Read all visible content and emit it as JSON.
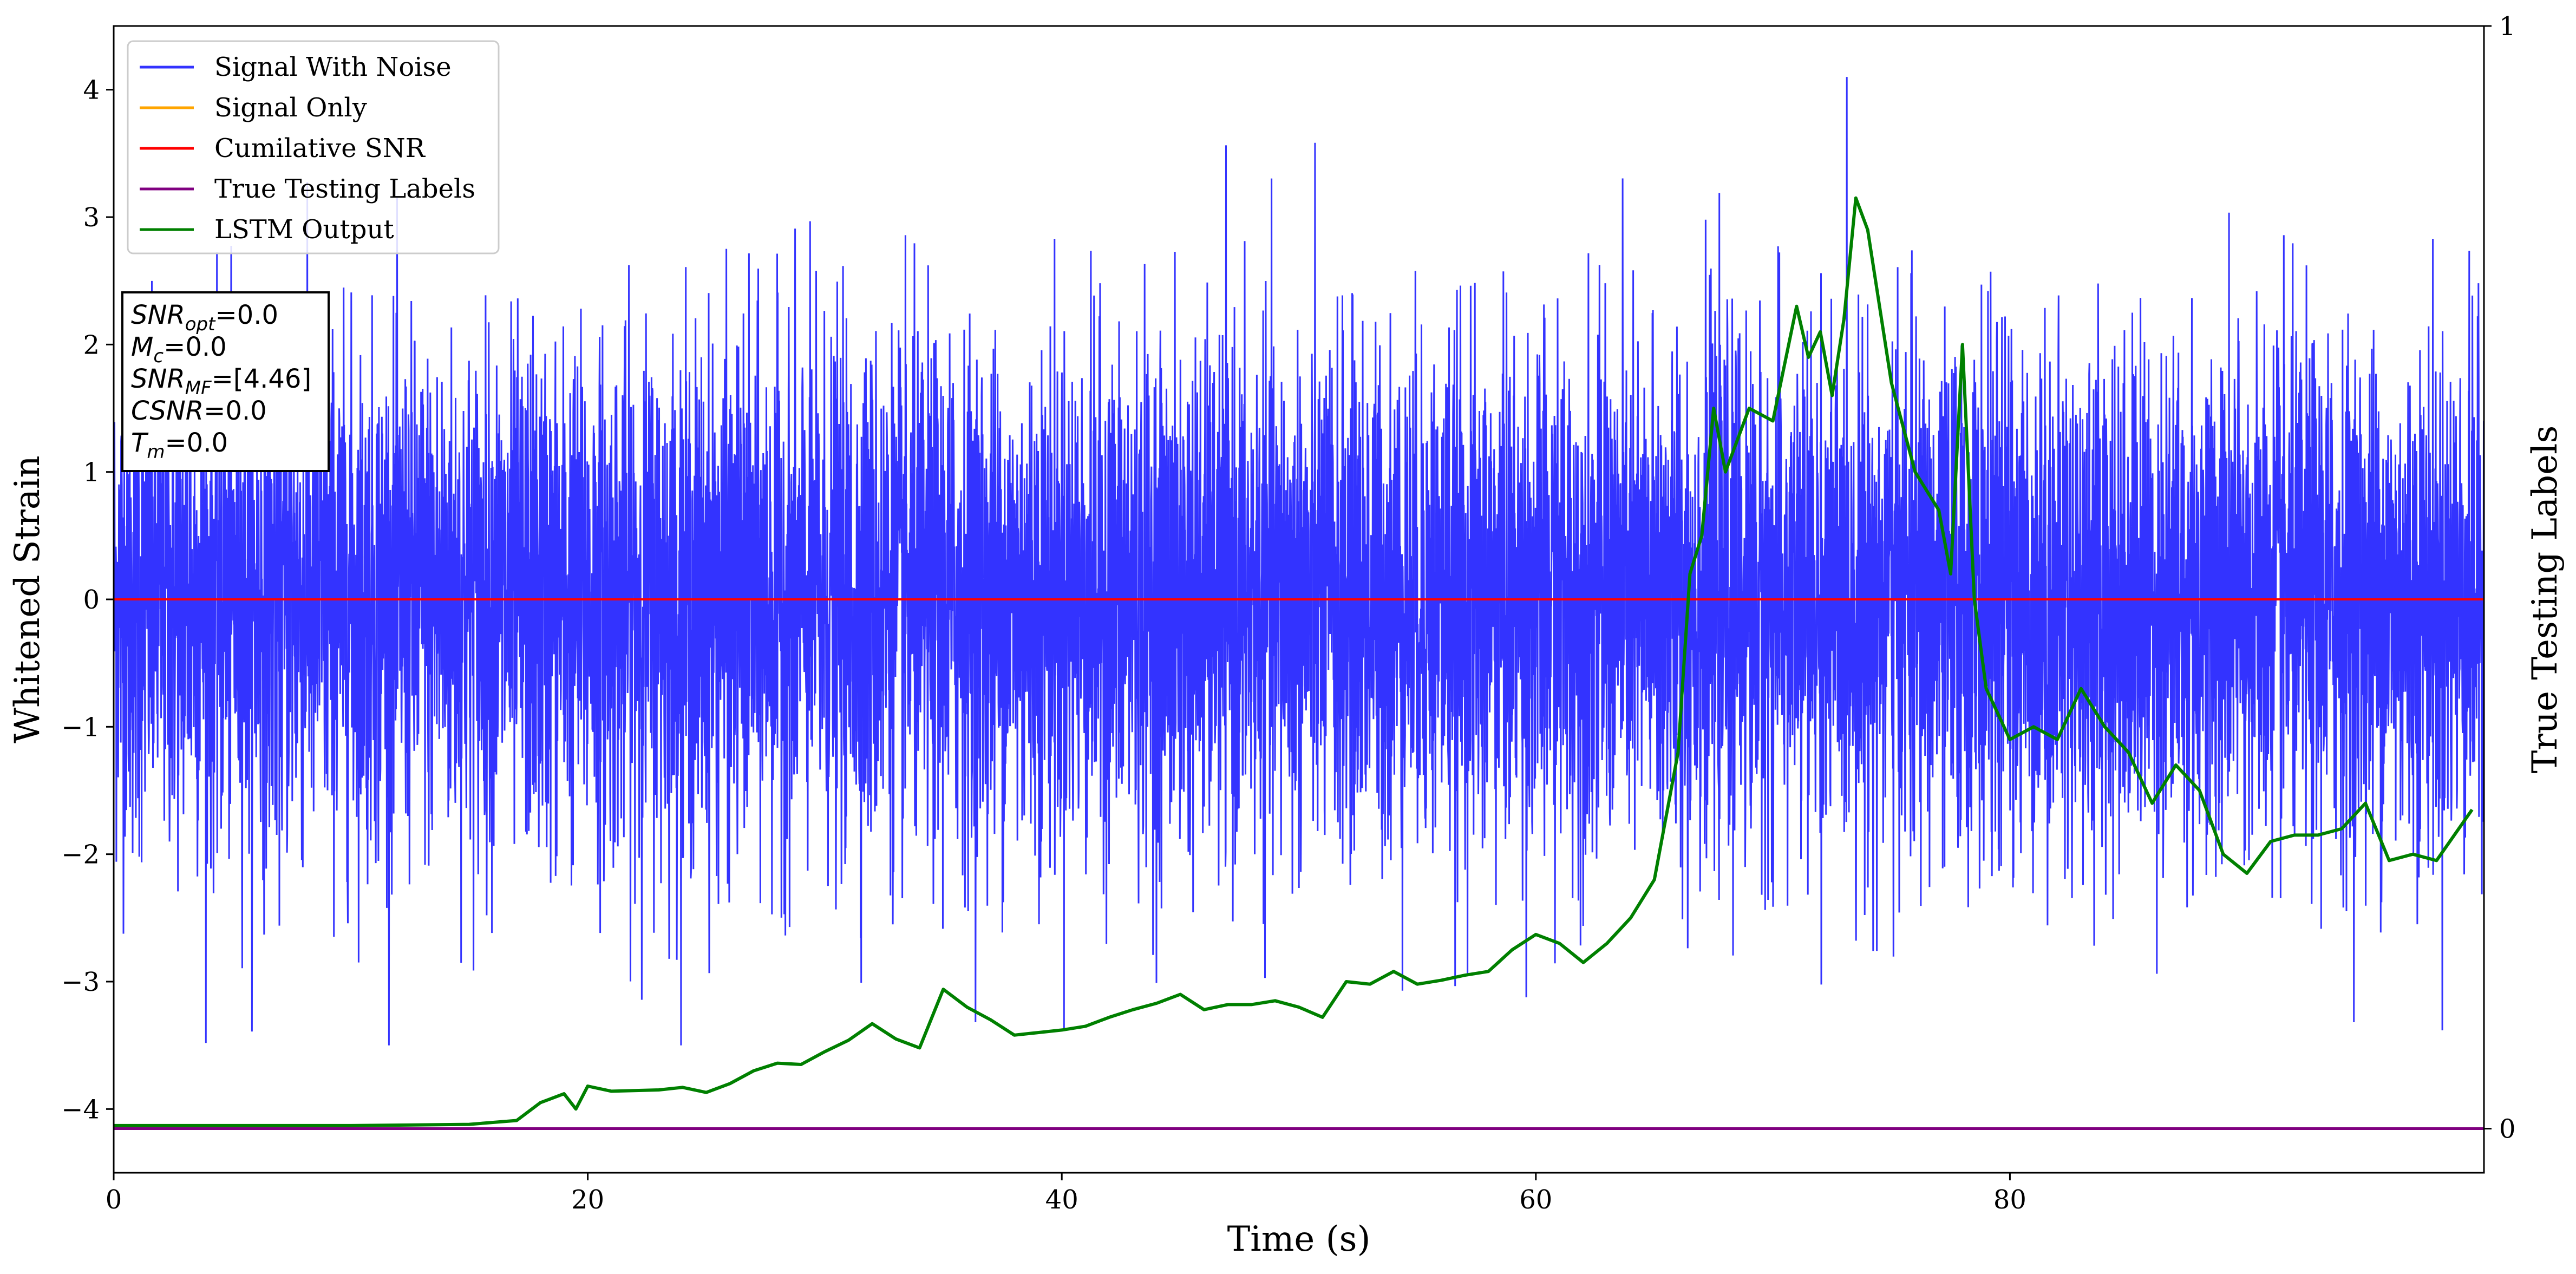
{
  "chart_data": {
    "type": "line",
    "xlabel": "Time (s)",
    "ylabel": "Whitened Strain",
    "y2label": "True Testing Labels",
    "xlim": [
      0,
      100
    ],
    "ylim": [
      -4.5,
      4.5
    ],
    "y2lim": [
      -0.04,
      1
    ],
    "xticks": [
      "0",
      "20",
      "40",
      "60",
      "80"
    ],
    "xtick_values": [
      0,
      20,
      40,
      60,
      80
    ],
    "yticks": [
      "4",
      "3",
      "2",
      "1",
      "0",
      "−1",
      "−2",
      "−3",
      "−4"
    ],
    "ytick_values": [
      4,
      3,
      2,
      1,
      0,
      -1,
      -2,
      -3,
      -4
    ],
    "y2ticks": [
      "1",
      "0"
    ],
    "y2tick_values": [
      1,
      0
    ],
    "legend_position": "top-left",
    "series": [
      {
        "name": "Signal With Noise",
        "color": "#3333ff",
        "kind": "noise",
        "description_values": {
          "mean": 0.0,
          "approx_min": -3.5,
          "approx_max": 4.1
        }
      },
      {
        "name": "Signal Only",
        "color": "#ffa500",
        "y": [
          0,
          0
        ],
        "x": [
          0,
          100
        ]
      },
      {
        "name": "Cumilative SNR",
        "color": "#ff0000",
        "y": [
          0,
          0
        ],
        "x": [
          0,
          100
        ]
      },
      {
        "name": "True Testing Labels",
        "color": "#800080",
        "axis": "right",
        "x": [
          0,
          100
        ],
        "y": [
          0,
          0
        ]
      },
      {
        "name": "LSTM Output",
        "color": "#008000",
        "axis": "left",
        "x": [
          0,
          10,
          15,
          17,
          18,
          19,
          19.5,
          20,
          21,
          23,
          24,
          25,
          26,
          27,
          28,
          29,
          30,
          31,
          32,
          33,
          34,
          35,
          36,
          37,
          38,
          39,
          40,
          41,
          42,
          43,
          44,
          45,
          46,
          47,
          48,
          49,
          50,
          51,
          52,
          53,
          54,
          55,
          56,
          57,
          58,
          59,
          60,
          61,
          62,
          63,
          64,
          65,
          66,
          66.5,
          67,
          67.5,
          68,
          69,
          70,
          71,
          71.5,
          72,
          72.5,
          73,
          73.5,
          74,
          75,
          76,
          77,
          77.5,
          78,
          78.5,
          79,
          80,
          81,
          82,
          83,
          84,
          85,
          86,
          87,
          88,
          89,
          90,
          91,
          92,
          93,
          94,
          95,
          96,
          97,
          98,
          99.5
        ],
        "y": [
          -4.13,
          -4.13,
          -4.12,
          -4.09,
          -3.95,
          -3.88,
          -4.0,
          -3.82,
          -3.86,
          -3.85,
          -3.83,
          -3.87,
          -3.8,
          -3.7,
          -3.64,
          -3.65,
          -3.55,
          -3.46,
          -3.33,
          -3.45,
          -3.52,
          -3.06,
          -3.2,
          -3.3,
          -3.42,
          -3.4,
          -3.38,
          -3.35,
          -3.28,
          -3.22,
          -3.17,
          -3.1,
          -3.22,
          -3.18,
          -3.18,
          -3.15,
          -3.2,
          -3.28,
          -3.0,
          -3.02,
          -2.92,
          -3.02,
          -2.99,
          -2.95,
          -2.92,
          -2.75,
          -2.63,
          -2.7,
          -2.85,
          -2.7,
          -2.5,
          -2.2,
          -1.2,
          0.2,
          0.5,
          1.5,
          1.0,
          1.5,
          1.4,
          2.3,
          1.9,
          2.1,
          1.6,
          2.2,
          3.15,
          2.9,
          1.7,
          1.0,
          0.7,
          0.2,
          2.0,
          0.0,
          -0.7,
          -1.1,
          -1.0,
          -1.1,
          -0.7,
          -1.0,
          -1.2,
          -1.6,
          -1.3,
          -1.5,
          -2.0,
          -2.15,
          -1.9,
          -1.85,
          -1.85,
          -1.8,
          -1.6,
          -2.05,
          -2.0,
          -2.05,
          -1.65
        ]
      }
    ],
    "annotation_lines": [
      {
        "label": "SNR_opt",
        "sub": "opt",
        "base": "SNR",
        "value": "=0.0"
      },
      {
        "label": "M_c",
        "sub": "c",
        "base": "M",
        "value": "=0.0"
      },
      {
        "label": "SNR_MF",
        "sub": "MF",
        "base": "SNR",
        "value": "=[4.46]"
      },
      {
        "label": "CSNR",
        "sub": "",
        "base": "CSNR",
        "value": "=0.0"
      },
      {
        "label": "T_m",
        "sub": "m",
        "base": "T",
        "value": "=0.0"
      }
    ]
  }
}
